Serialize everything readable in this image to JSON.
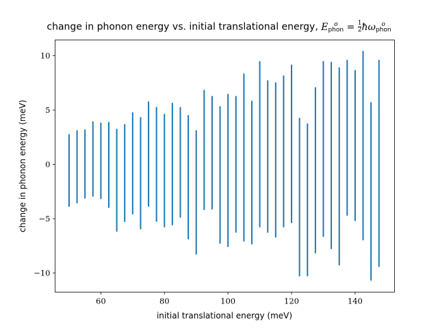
{
  "chart_data": {
    "type": "vlines",
    "title": {
      "text": "change in phonon energy vs. initial translational energy,",
      "math_symbol": "E",
      "math_sup": "o",
      "math_sub": "phon",
      "equals": "=",
      "frac_num": "1",
      "frac_den": "2",
      "hbar": "ħ",
      "omega": "ω"
    },
    "xlabel": "initial translational energy (meV)",
    "ylabel": "change in phonon energy (meV)",
    "xlim": [
      45.6,
      152.4
    ],
    "ylim": [
      -11.76,
      11.45
    ],
    "xticks": [
      60,
      80,
      100,
      120,
      140
    ],
    "xtick_labels": [
      "60",
      "80",
      "100",
      "120",
      "140"
    ],
    "yticks": [
      -10,
      -5,
      0,
      5,
      10
    ],
    "ytick_labels": [
      "−10",
      "−5",
      "0",
      "5",
      "10"
    ],
    "color": "#1f77b4",
    "x": [
      50,
      52.5,
      55,
      57.5,
      60,
      62.5,
      65,
      67.5,
      70,
      72.5,
      75,
      77.5,
      80,
      82.5,
      85,
      87.5,
      90,
      92.5,
      95,
      97.5,
      100,
      102.5,
      105,
      107.5,
      110,
      112.5,
      115,
      117.5,
      120,
      122.5,
      125,
      127.5,
      130,
      132.5,
      135,
      137.5,
      140,
      142.5,
      145,
      147.5
    ],
    "ymax": [
      2.77,
      3.14,
      3.2,
      3.96,
      3.84,
      3.9,
      3.27,
      3.7,
      4.78,
      4.34,
      5.79,
      5.28,
      4.65,
      5.66,
      5.28,
      4.53,
      3.14,
      6.86,
      6.29,
      5.35,
      6.48,
      6.29,
      8.36,
      5.85,
      9.5,
      7.74,
      7.55,
      8.18,
      9.18,
      4.28,
      3.77,
      7.1,
      9.5,
      9.43,
      8.93,
      9.62,
      8.68,
      10.44,
      5.72,
      9.62
    ],
    "ymin": [
      -3.9,
      -3.58,
      -3.14,
      -2.96,
      -3.2,
      -4.0,
      -6.2,
      -5.3,
      -4.6,
      -5.97,
      -3.9,
      -5.28,
      -5.79,
      -5.6,
      -4.9,
      -6.9,
      -8.3,
      -4.2,
      -4.15,
      -7.3,
      -7.6,
      -6.29,
      -7.1,
      -7.36,
      -5.79,
      -6.29,
      -6.73,
      -5.79,
      -5.4,
      -10.3,
      -10.3,
      -8.18,
      -6.67,
      -7.8,
      -9.3,
      -4.72,
      -5.22,
      -6.98,
      -10.7,
      -9.43
    ]
  }
}
